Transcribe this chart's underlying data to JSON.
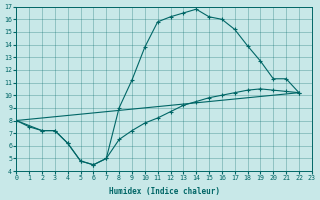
{
  "xlabel": "Humidex (Indice chaleur)",
  "bg_color": "#c8e8e8",
  "line_color": "#006666",
  "xlim": [
    0,
    23
  ],
  "ylim": [
    4,
    17
  ],
  "xticks": [
    0,
    1,
    2,
    3,
    4,
    5,
    6,
    7,
    8,
    9,
    10,
    11,
    12,
    13,
    14,
    15,
    16,
    17,
    18,
    19,
    20,
    21,
    22,
    23
  ],
  "yticks": [
    4,
    5,
    6,
    7,
    8,
    9,
    10,
    11,
    12,
    13,
    14,
    15,
    16,
    17
  ],
  "curve1_x": [
    0,
    2,
    3,
    4,
    5,
    6,
    7,
    8,
    9,
    10,
    11,
    12,
    13,
    14,
    15,
    16,
    17,
    18,
    19,
    20,
    21,
    22
  ],
  "curve1_y": [
    8.0,
    7.2,
    7.2,
    6.2,
    4.8,
    4.5,
    5.0,
    9.0,
    11.2,
    13.8,
    15.8,
    16.2,
    16.5,
    16.8,
    16.2,
    16.0,
    15.2,
    13.9,
    12.7,
    11.3,
    11.3,
    10.2
  ],
  "curve2_x": [
    0,
    1,
    2,
    3,
    4,
    5,
    6,
    7,
    8,
    9,
    10,
    11,
    12,
    13,
    14,
    15,
    16,
    17,
    18,
    19,
    20,
    21,
    22
  ],
  "curve2_y": [
    8.0,
    7.5,
    7.2,
    7.2,
    6.2,
    4.8,
    4.5,
    5.0,
    6.5,
    7.2,
    7.8,
    8.2,
    8.7,
    9.2,
    9.5,
    9.8,
    10.0,
    10.2,
    10.4,
    10.5,
    10.4,
    10.3,
    10.2
  ],
  "curve3_x": [
    0,
    22
  ],
  "curve3_y": [
    8.0,
    10.2
  ]
}
